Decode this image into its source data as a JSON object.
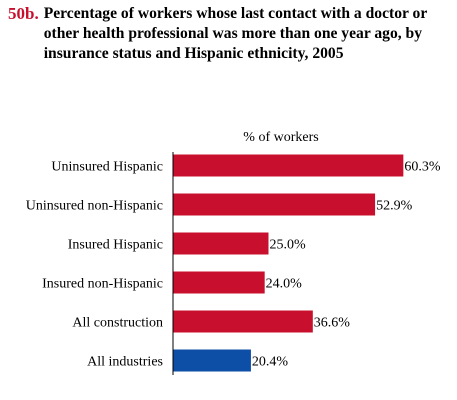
{
  "figure": {
    "number": "50b.",
    "title": "Percentage of workers whose last contact with a doctor or other health professional was more than one year ago, by insurance status and Hispanic ethnicity, 2005"
  },
  "chart_data": {
    "type": "bar",
    "orientation": "horizontal",
    "title": "Percentage of workers whose last contact with a doctor or other health professional was more than one year ago, by insurance status and Hispanic ethnicity, 2005",
    "xlabel": "% of workers",
    "ylabel": "",
    "xlim": [
      0,
      100
    ],
    "grid": false,
    "legend": "none",
    "categories": [
      "Uninsured Hispanic",
      "Uninsured non-Hispanic",
      "Insured Hispanic",
      "Insured non-Hispanic",
      "All construction",
      "All industries"
    ],
    "values": [
      60.3,
      52.9,
      25.0,
      24.0,
      36.6,
      20.4
    ],
    "value_labels": [
      "60.3%",
      "52.9%",
      "25.0%",
      "24.0%",
      "36.6%",
      "20.4%"
    ],
    "bar_colors": [
      "#c8102e",
      "#c8102e",
      "#c8102e",
      "#c8102e",
      "#c8102e",
      "#0d4ea6"
    ],
    "colors": {
      "construction": "#c8102e",
      "all_industries": "#0d4ea6",
      "figure_number": "#c8102e"
    }
  }
}
